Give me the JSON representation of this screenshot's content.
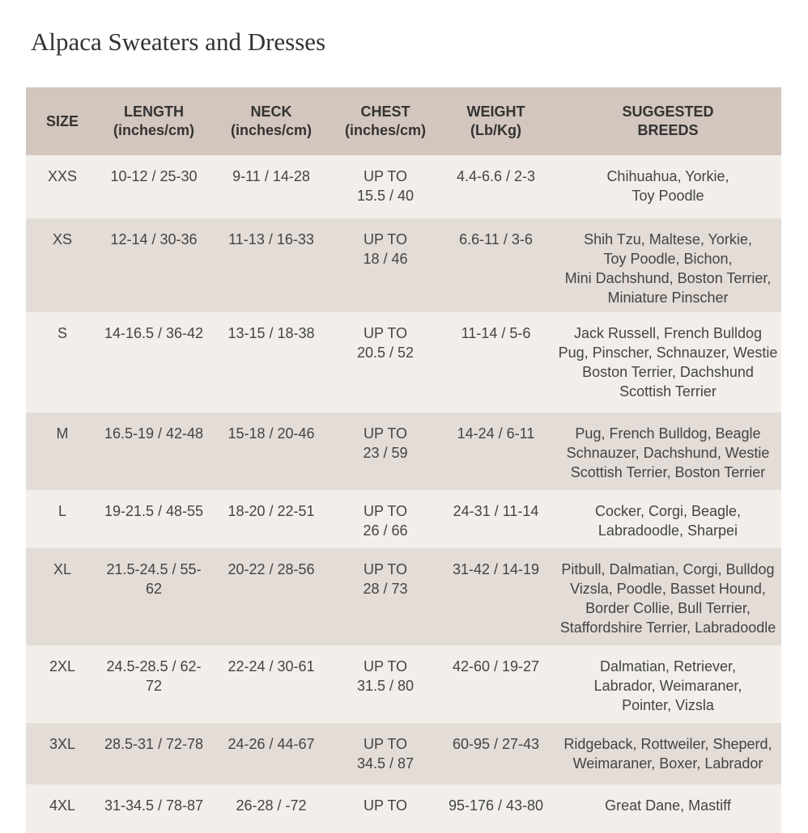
{
  "title": "Alpaca Sweaters and Dresses",
  "headers": [
    [
      "SIZE"
    ],
    [
      "LENGTH",
      "(inches/cm)"
    ],
    [
      "NECK",
      "(inches/cm)"
    ],
    [
      "CHEST",
      "(inches/cm)"
    ],
    [
      "WEIGHT",
      "(Lb/Kg)"
    ],
    [
      "SUGGESTED",
      "BREEDS"
    ]
  ],
  "rows": [
    {
      "size": "XXS",
      "length": "10-12 / 25-30",
      "neck": "9-11 / 14-28",
      "chest": [
        "UP TO",
        "15.5 / 40"
      ],
      "weight": "4.4-6.6 / 2-3",
      "breeds": [
        "Chihuahua, Yorkie,",
        "Toy Poodle"
      ]
    },
    {
      "size": "XS",
      "length": "12-14 / 30-36",
      "neck": "11-13 / 16-33",
      "chest": [
        "UP TO",
        "18 / 46"
      ],
      "weight": "6.6-11 / 3-6",
      "breeds": [
        "Shih Tzu, Maltese, Yorkie,",
        "Toy Poodle, Bichon,",
        "Mini Dachshund, Boston Terrier,",
        "Miniature Pinscher"
      ]
    },
    {
      "size": "S",
      "length": "14-16.5 / 36-42",
      "neck": "13-15 / 18-38",
      "chest": [
        "UP TO",
        "20.5 / 52"
      ],
      "weight": "11-14 / 5-6",
      "breeds": [
        "Jack Russell, French Bulldog",
        "Pug, Pinscher, Schnauzer, Westie",
        "Boston Terrier, Dachshund",
        "Scottish Terrier"
      ]
    },
    {
      "size": "M",
      "length": "16.5-19 / 42-48",
      "neck": "15-18 / 20-46",
      "chest": [
        "UP TO",
        "23 / 59"
      ],
      "weight": "14-24 / 6-11",
      "breeds": [
        "Pug, French Bulldog, Beagle",
        "Schnauzer, Dachshund, Westie",
        "Scottish Terrier, Boston Terrier"
      ]
    },
    {
      "size": "L",
      "length": "19-21.5 / 48-55",
      "neck": "18-20 / 22-51",
      "chest": [
        "UP TO",
        "26 / 66"
      ],
      "weight": "24-31 / 11-14",
      "breeds": [
        "Cocker, Corgi, Beagle,",
        "Labradoodle, Sharpei"
      ]
    },
    {
      "size": "XL",
      "length": "21.5-24.5 / 55-62",
      "neck": "20-22 / 28-56",
      "chest": [
        "UP TO",
        "28 / 73"
      ],
      "weight": "31-42 / 14-19",
      "breeds": [
        "Pitbull, Dalmatian, Corgi, Bulldog",
        "Vizsla, Poodle, Basset Hound,",
        "Border Collie, Bull Terrier,",
        "Staffordshire Terrier, Labradoodle"
      ]
    },
    {
      "size": "2XL",
      "length": "24.5-28.5 / 62-72",
      "neck": "22-24 / 30-61",
      "chest": [
        "UP TO",
        "31.5 / 80"
      ],
      "weight": "42-60 / 19-27",
      "breeds": [
        "Dalmatian, Retriever,",
        "Labrador, Weimaraner,",
        "Pointer, Vizsla"
      ]
    },
    {
      "size": "3XL",
      "length": "28.5-31 / 72-78",
      "neck": "24-26 / 44-67",
      "chest": [
        "UP TO",
        "34.5 / 87"
      ],
      "weight": "60-95 / 27-43",
      "breeds": [
        "Ridgeback, Rottweiler, Sheperd,",
        "Weimaraner, Boxer, Labrador"
      ]
    },
    {
      "size": "4XL",
      "length": "31-34.5 / 78-87",
      "neck": "26-28 / -72",
      "chest": [
        "UP TO"
      ],
      "weight": "95-176 / 43-80",
      "breeds": [
        "Great Dane, Mastiff"
      ]
    }
  ]
}
